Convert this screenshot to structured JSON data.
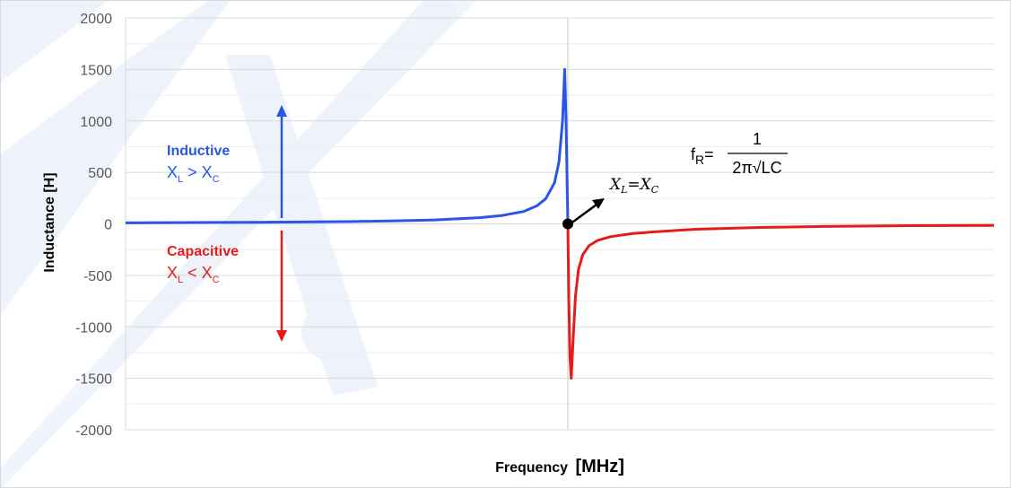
{
  "chart_data": {
    "type": "line",
    "xlabel": "Frequency",
    "xlabel_unit": "[MHz]",
    "ylabel": "Inductance [H]",
    "ylim": [
      -2000,
      2000
    ],
    "yticks": [
      2000,
      1500,
      1000,
      500,
      0,
      -500,
      -1000,
      -1500,
      -2000
    ],
    "grid": true,
    "x_ticks_shown": false,
    "resonance": {
      "x": 0,
      "y": 0
    },
    "series": [
      {
        "color": "#2a56e8",
        "x": [
          -1.0,
          -0.9,
          -0.8,
          -0.7,
          -0.6,
          -0.5,
          -0.4,
          -0.3,
          -0.2,
          -0.15,
          -0.1,
          -0.07,
          -0.05,
          -0.03,
          -0.02,
          -0.012,
          -0.007,
          -0.004,
          0
        ],
        "y": [
          10,
          12,
          14,
          16,
          18,
          22,
          28,
          38,
          60,
          80,
          120,
          175,
          245,
          400,
          600,
          1000,
          1500,
          1000,
          0
        ]
      },
      {
        "color": "#e81b1b",
        "x": [
          0,
          0.002,
          0.005,
          0.008,
          0.012,
          0.018,
          0.025,
          0.035,
          0.05,
          0.07,
          0.1,
          0.15,
          0.2,
          0.3,
          0.45,
          0.6,
          0.8,
          1.0
        ],
        "y": [
          0,
          -700,
          -1300,
          -1500,
          -1150,
          -700,
          -440,
          -300,
          -210,
          -160,
          -125,
          -95,
          -78,
          -52,
          -35,
          -25,
          -17,
          -15
        ]
      }
    ]
  },
  "annotations": {
    "inductive": {
      "title": "Inductive",
      "relation_left": "X",
      "relation_left_sub": "L",
      "relation_op": " > ",
      "relation_right": "X",
      "relation_right_sub": "C",
      "color": "#2a56e8"
    },
    "capacitive": {
      "title": "Capacitive",
      "relation_left": "X",
      "relation_left_sub": "L",
      "relation_op": " < ",
      "relation_right": "X",
      "relation_right_sub": "C",
      "color": "#e81b1b"
    },
    "resonance_label": {
      "left": "X",
      "left_sub": "L",
      "eq": "=",
      "right": "X",
      "right_sub": "C"
    },
    "formula": {
      "lhs": "f",
      "lhs_sub": "R",
      "eq": "=",
      "numerator": "1",
      "denominator": "2π√LC"
    }
  }
}
